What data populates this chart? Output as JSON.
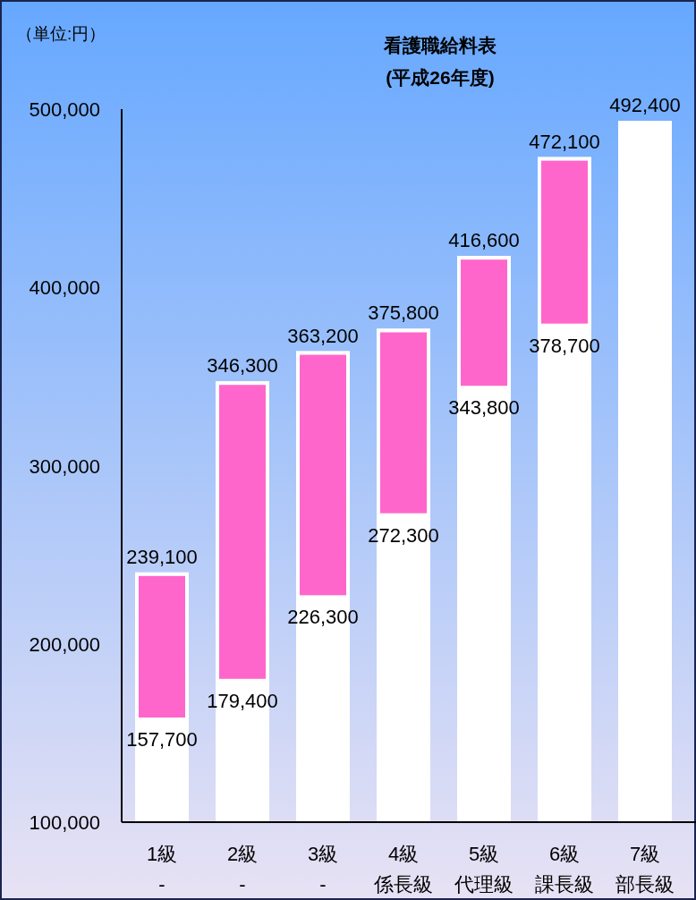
{
  "chart_data": {
    "type": "bar",
    "title": "看護職給料表",
    "subtitle": "(平成26年度)",
    "annotations": [
      "（単位:円）",
      {
        "text": "239,100",
        "x": "1級-",
        "y": 239100
      },
      {
        "text": "157,700",
        "x": "1級-",
        "y": 157700
      },
      {
        "text": "346,300",
        "x": "2級-",
        "y": 346300
      },
      {
        "text": "179,400",
        "x": "2級-",
        "y": 179400
      },
      {
        "text": "363,200",
        "x": "3級-",
        "y": 363200
      },
      {
        "text": "226,300",
        "x": "3級-",
        "y": 226300
      },
      {
        "text": "375,800",
        "x": "4級係長級",
        "y": 375800
      },
      {
        "text": "272,300",
        "x": "4級係長級",
        "y": 272300
      },
      {
        "text": "416,600",
        "x": "5級代理級",
        "y": 416600
      },
      {
        "text": "343,800",
        "x": "5級代理級",
        "y": 343800
      },
      {
        "text": "472,100",
        "x": "6級課長級",
        "y": 472100
      },
      {
        "text": "378,700",
        "x": "6級課長級",
        "y": 378700
      },
      {
        "text": "492,400",
        "x": "7級部長級",
        "y": 492400
      }
    ],
    "categories": [
      "1級-",
      "2級-",
      "3級-",
      "4級係長級",
      "5級代理級",
      "6級課長級",
      "7級部長級"
    ],
    "series": [
      {
        "color": "#ffffff",
        "values": [
          239100,
          346300,
          363200,
          375800,
          416600,
          472100,
          492400
        ]
      },
      {
        "color": "#ff66cc",
        "base": [
          157700,
          179400,
          226300,
          272300,
          343800,
          378700,
          491400
        ],
        "values": [
          81400,
          166900,
          136900,
          103500,
          72800,
          93400,
          1000
        ]
      }
    ],
    "ylim": [
      100000,
      500000
    ],
    "yticks": [
      {
        "value": 100000,
        "label": "100,000"
      },
      {
        "value": 200000,
        "label": "200,000"
      },
      {
        "value": 300000,
        "label": "300,000"
      },
      {
        "value": 400000,
        "label": "400,000"
      },
      {
        "value": 500000,
        "label": "500,000"
      }
    ],
    "grid": false
  }
}
